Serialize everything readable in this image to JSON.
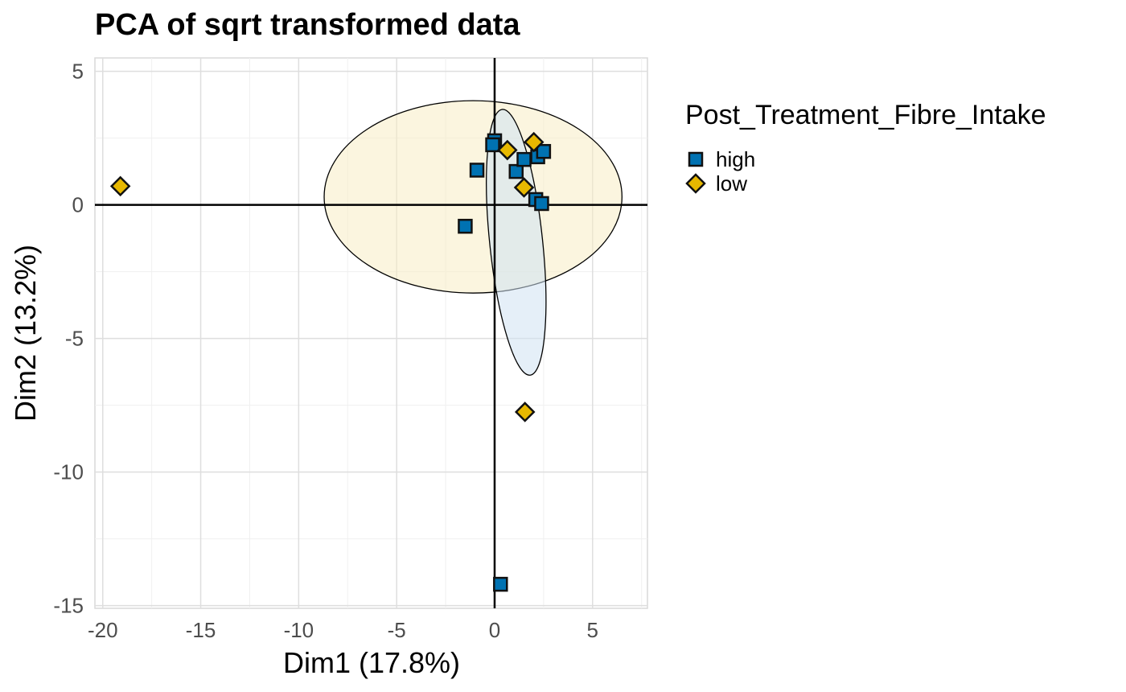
{
  "chart_data": {
    "type": "scatter",
    "title": "PCA of sqrt transformed data",
    "xlabel": "Dim1 (17.8%)",
    "ylabel": "Dim2 (13.2%)",
    "xlim": [
      -20.4,
      7.8
    ],
    "ylim": [
      -15.1,
      5.5
    ],
    "x_ticks": [
      -20,
      -15,
      -10,
      -5,
      0,
      5
    ],
    "y_ticks": [
      -15,
      -10,
      -5,
      0,
      5
    ],
    "grid": true,
    "legend": {
      "title": "Post_Treatment_Fibre_Intake",
      "placement": "right"
    },
    "series": [
      {
        "name": "high",
        "color": "#0072B2",
        "marker": "square",
        "points": [
          {
            "x": 0.0,
            "y": 2.4
          },
          {
            "x": -0.1,
            "y": 2.25
          },
          {
            "x": -0.9,
            "y": 1.3
          },
          {
            "x": 1.1,
            "y": 1.25
          },
          {
            "x": 1.5,
            "y": 1.7
          },
          {
            "x": 2.2,
            "y": 1.8
          },
          {
            "x": 2.5,
            "y": 2.0
          },
          {
            "x": 2.1,
            "y": 0.2
          },
          {
            "x": 2.4,
            "y": 0.05
          },
          {
            "x": -1.5,
            "y": -0.8
          },
          {
            "x": 0.3,
            "y": -14.2
          }
        ],
        "ellipse": {
          "cx": 1.1,
          "cy": -1.4,
          "rx": 1.35,
          "ry": 5.0,
          "rotation_deg": 6,
          "fill": "#cfe1f3"
        }
      },
      {
        "name": "low",
        "color": "#E7B800",
        "marker": "diamond",
        "points": [
          {
            "x": -19.1,
            "y": 0.7
          },
          {
            "x": 0.65,
            "y": 2.05
          },
          {
            "x": 2.0,
            "y": 2.35
          },
          {
            "x": 1.5,
            "y": 0.65
          },
          {
            "x": 1.55,
            "y": -7.75
          }
        ],
        "ellipse": {
          "cx": -1.1,
          "cy": 0.3,
          "rx": 7.6,
          "ry": 3.6,
          "rotation_deg": 0,
          "fill": "#f8ecc4"
        }
      }
    ]
  }
}
